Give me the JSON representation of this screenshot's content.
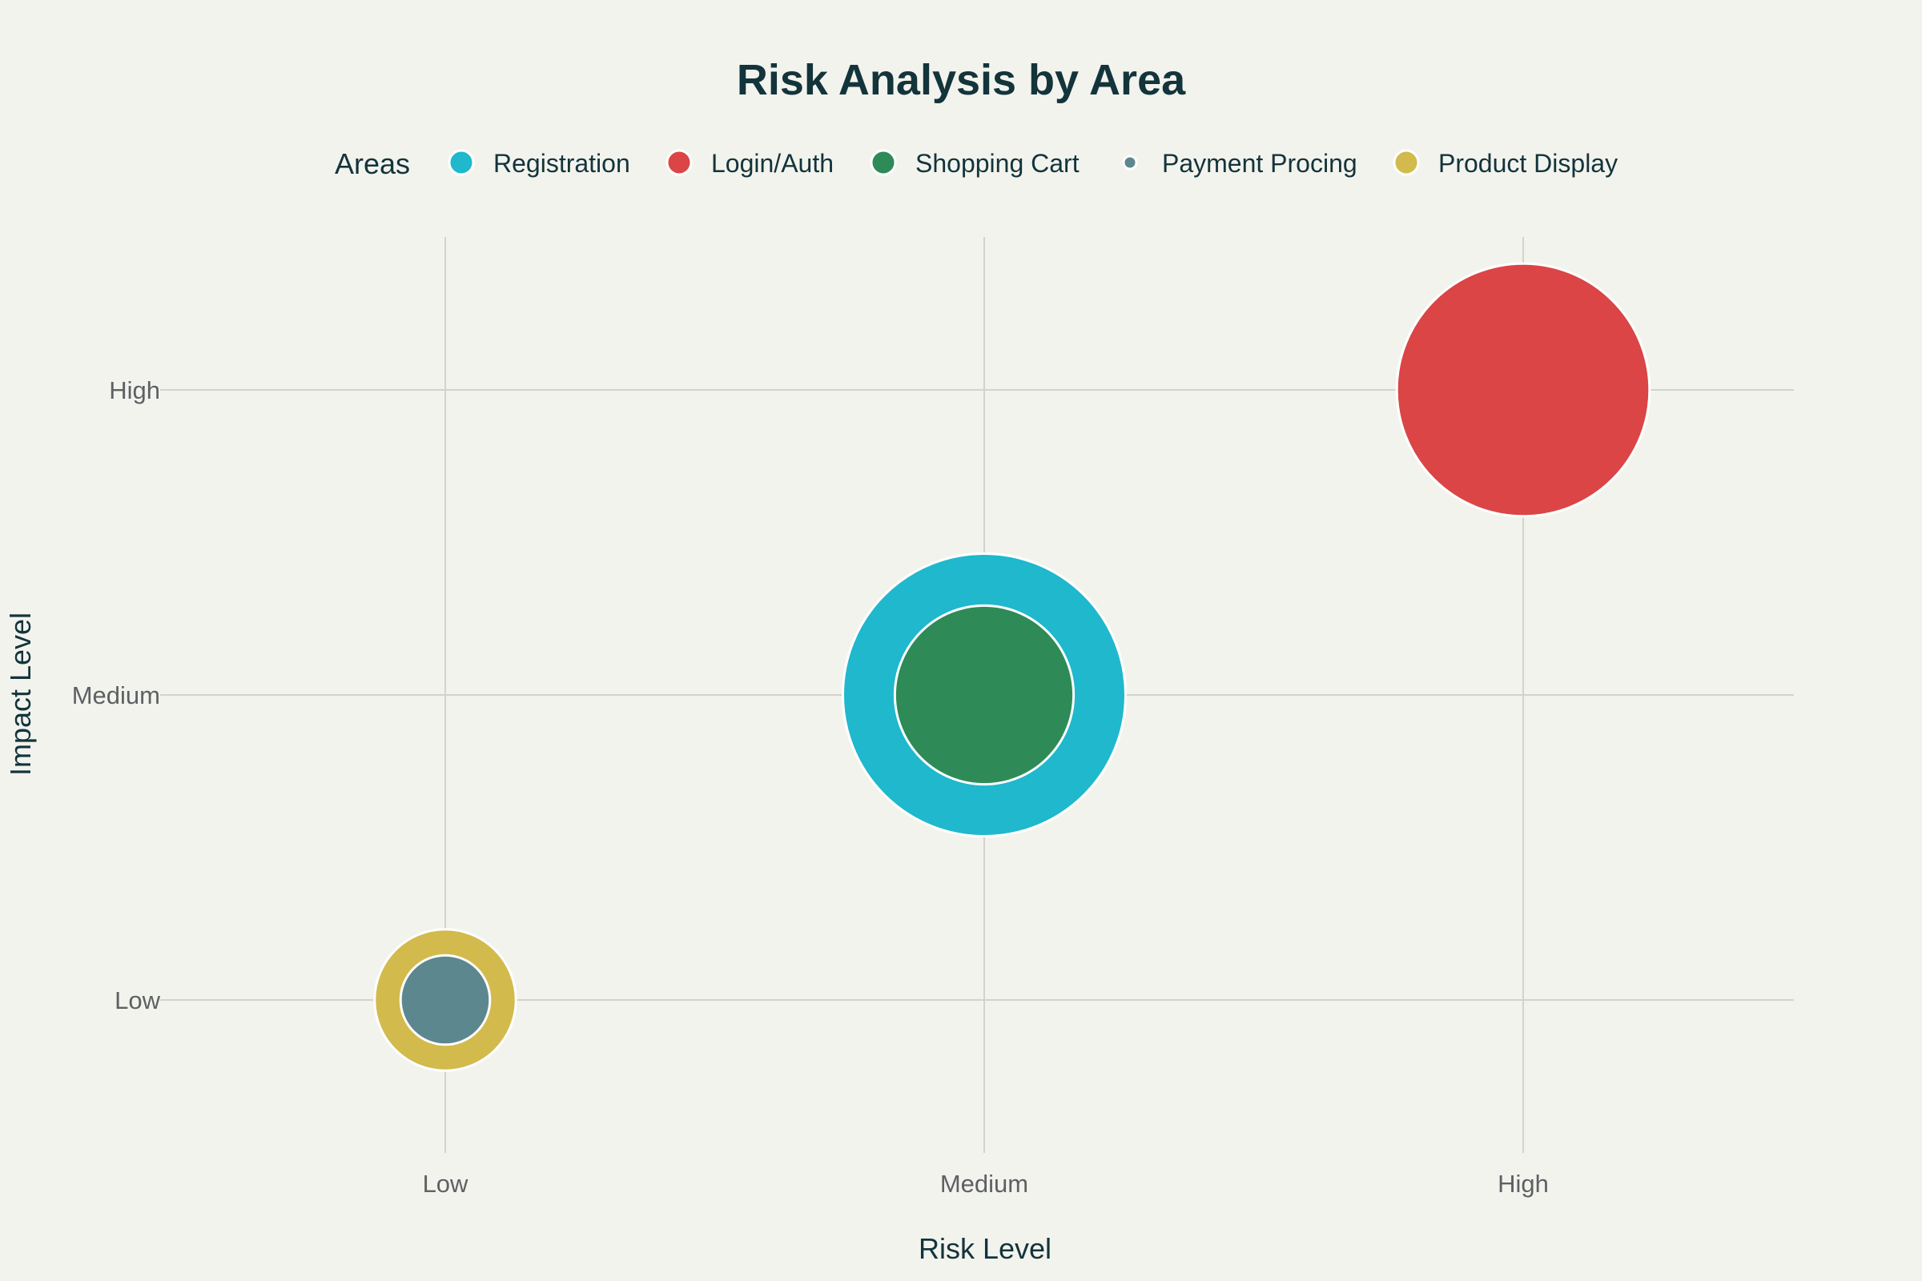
{
  "chart_data": {
    "type": "scatter",
    "title": "Risk Analysis by Area",
    "xlabel": "Risk Level",
    "ylabel": "Impact Level",
    "x_categories": [
      "Low",
      "Medium",
      "High"
    ],
    "y_categories": [
      "Low",
      "Medium",
      "High"
    ],
    "xlim": [
      -0.5,
      2.5
    ],
    "ylim": [
      -0.5,
      2.5
    ],
    "grid": true,
    "legend": {
      "title": "Areas",
      "placement": "top-center"
    },
    "series": [
      {
        "name": "Registration",
        "x": "Medium",
        "y": "Medium",
        "size": 10,
        "color": "#1fb8cd"
      },
      {
        "name": "Login/Auth",
        "x": "High",
        "y": "High",
        "size": 8,
        "color": "#db4545"
      },
      {
        "name": "Shopping Cart",
        "x": "Medium",
        "y": "Medium",
        "size": 4,
        "color": "#2e8b57"
      },
      {
        "name": "Payment Procing",
        "x": "Low",
        "y": "Low",
        "size": 1,
        "color": "#5d878f"
      },
      {
        "name": "Product Display",
        "x": "Low",
        "y": "Low",
        "size": 2.5,
        "color": "#d2ba4c"
      }
    ]
  }
}
